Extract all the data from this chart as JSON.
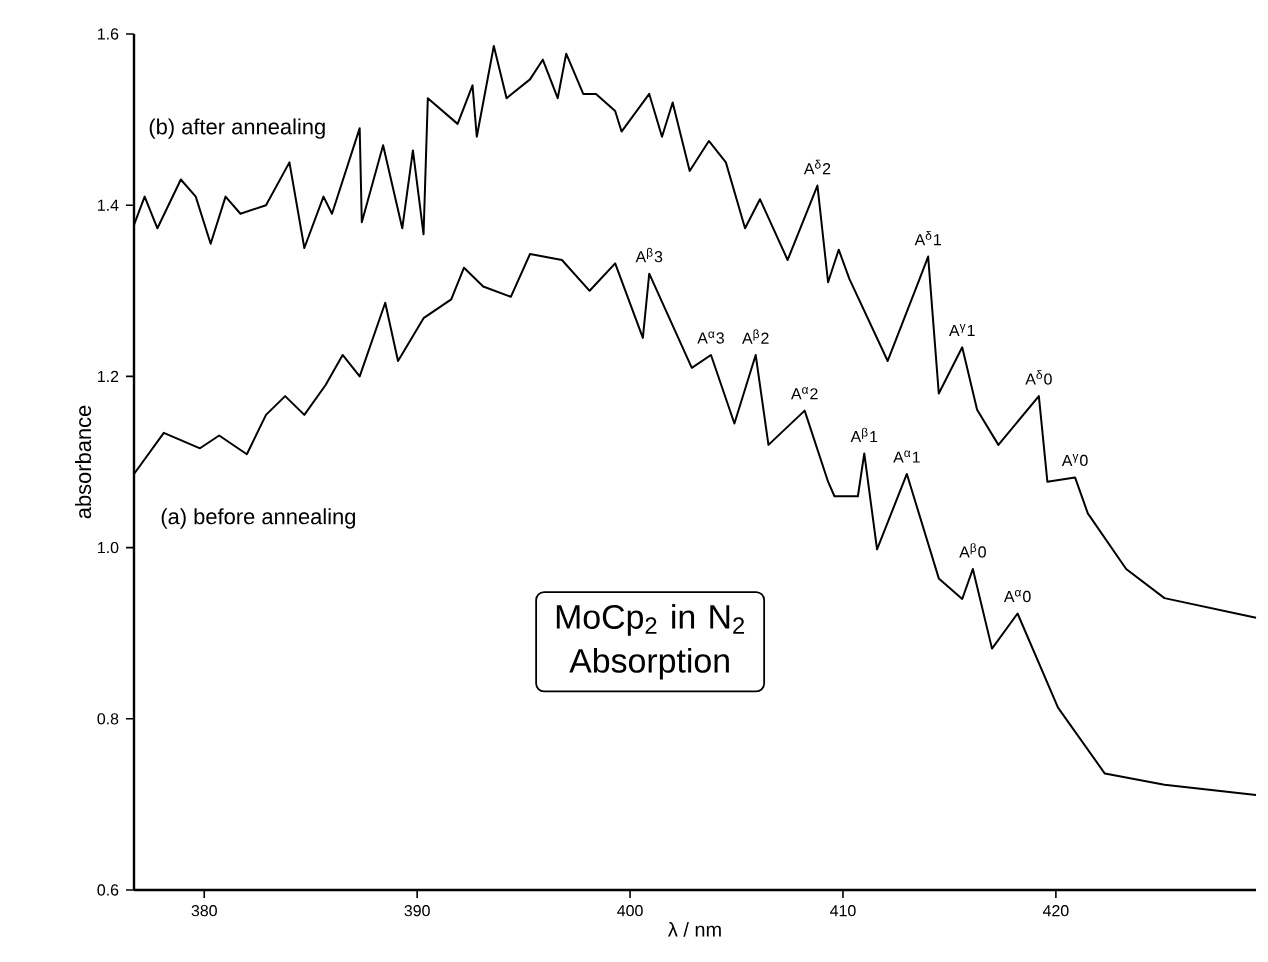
{
  "chart_data": {
    "type": "line",
    "title": "MoCp$_{2}$ in N$_{2}$ Absorption",
    "xlabel": "λ / nm",
    "ylabel": "absorbance",
    "xlim": [
      376.7,
      429.4
    ],
    "ylim": [
      0.6,
      1.6
    ],
    "xticks": [
      380,
      390,
      400,
      410,
      420
    ],
    "yticks": [
      {
        "value": 0.6,
        "label": "0.6"
      },
      {
        "value": 0.8,
        "label": "0.8"
      },
      {
        "value": 1.0,
        "label": "1.0"
      },
      {
        "value": 1.2,
        "label": "1.2"
      },
      {
        "value": 1.4,
        "label": "1.4"
      },
      {
        "value": 1.6,
        "label": "1.6"
      }
    ],
    "series": [
      {
        "name": "(b) after annealing",
        "color": "#000000",
        "x": [
          376.7,
          377.2,
          377.8,
          378.9,
          379.6,
          380.3,
          381.0,
          381.7,
          382.9,
          384.0,
          384.7,
          385.6,
          386.0,
          387.3,
          387.4,
          388.4,
          389.3,
          389.8,
          390.3,
          390.5,
          391.9,
          392.6,
          392.8,
          393.6,
          394.2,
          395.3,
          395.9,
          396.6,
          397.0,
          397.8,
          398.4,
          399.3,
          399.6,
          400.9,
          401.5,
          402.0,
          402.8,
          403.7,
          404.5,
          405.4,
          406.1,
          407.4,
          408.8,
          409.3,
          409.8,
          410.3,
          412.1,
          413.6,
          414.0,
          414.5,
          415.6,
          416.3,
          417.3,
          419.2,
          419.6,
          420.9,
          421.5,
          423.3,
          425.1,
          429.4
        ],
        "values": [
          1.377,
          1.41,
          1.373,
          1.43,
          1.41,
          1.355,
          1.41,
          1.39,
          1.4,
          1.45,
          1.35,
          1.41,
          1.39,
          1.49,
          1.38,
          1.47,
          1.373,
          1.464,
          1.366,
          1.525,
          1.495,
          1.54,
          1.48,
          1.586,
          1.525,
          1.547,
          1.57,
          1.525,
          1.577,
          1.53,
          1.53,
          1.51,
          1.486,
          1.53,
          1.48,
          1.52,
          1.44,
          1.475,
          1.45,
          1.373,
          1.407,
          1.336,
          1.423,
          1.31,
          1.348,
          1.314,
          1.218,
          1.314,
          1.34,
          1.18,
          1.234,
          1.161,
          1.12,
          1.177,
          1.077,
          1.082,
          1.04,
          0.975,
          0.941,
          0.918
        ]
      },
      {
        "name": "(a) before annealing",
        "color": "#000000",
        "x": [
          376.7,
          378.1,
          379.8,
          380.7,
          382.0,
          382.9,
          383.8,
          384.7,
          385.7,
          386.5,
          387.3,
          388.5,
          389.1,
          390.3,
          391.6,
          392.2,
          393.1,
          394.4,
          395.3,
          396.8,
          398.1,
          399.3,
          400.6,
          400.9,
          402.9,
          403.8,
          404.9,
          405.9,
          406.5,
          408.2,
          409.3,
          409.6,
          410.7,
          411.0,
          411.6,
          413.0,
          414.5,
          415.6,
          416.1,
          417.0,
          418.2,
          420.1,
          422.3,
          425.1,
          429.4
        ],
        "values": [
          1.086,
          1.134,
          1.116,
          1.131,
          1.109,
          1.155,
          1.177,
          1.155,
          1.19,
          1.225,
          1.2,
          1.286,
          1.218,
          1.268,
          1.29,
          1.327,
          1.305,
          1.293,
          1.343,
          1.336,
          1.3,
          1.332,
          1.245,
          1.32,
          1.21,
          1.225,
          1.145,
          1.225,
          1.12,
          1.16,
          1.077,
          1.06,
          1.06,
          1.11,
          0.998,
          1.086,
          0.964,
          0.94,
          0.975,
          0.882,
          0.923,
          0.813,
          0.736,
          0.723,
          0.711
        ]
      }
    ],
    "annotations": [
      {
        "text": "A$^{β}$3",
        "x": 400.9,
        "y": 1.32
      },
      {
        "text": "A$^{α}$3",
        "x": 403.8,
        "y": 1.225
      },
      {
        "text": "A$^{β}$2",
        "x": 405.9,
        "y": 1.225
      },
      {
        "text": "A$^{α}$2",
        "x": 408.2,
        "y": 1.16
      },
      {
        "text": "A$^{β}$1",
        "x": 411.0,
        "y": 1.11
      },
      {
        "text": "A$^{α}$1",
        "x": 413.0,
        "y": 1.086
      },
      {
        "text": "A$^{β}$0",
        "x": 416.1,
        "y": 0.975
      },
      {
        "text": "A$^{α}$0",
        "x": 418.2,
        "y": 0.923
      },
      {
        "text": "A$^{δ}$2",
        "x": 408.8,
        "y": 1.423
      },
      {
        "text": "A$^{δ}$1",
        "x": 414.0,
        "y": 1.34
      },
      {
        "text": "A$^{γ}$1",
        "x": 415.6,
        "y": 1.234
      },
      {
        "text": "A$^{δ}$0",
        "x": 419.2,
        "y": 1.177
      },
      {
        "text": "A$^{γ}$0",
        "x": 420.9,
        "y": 1.082
      }
    ]
  }
}
